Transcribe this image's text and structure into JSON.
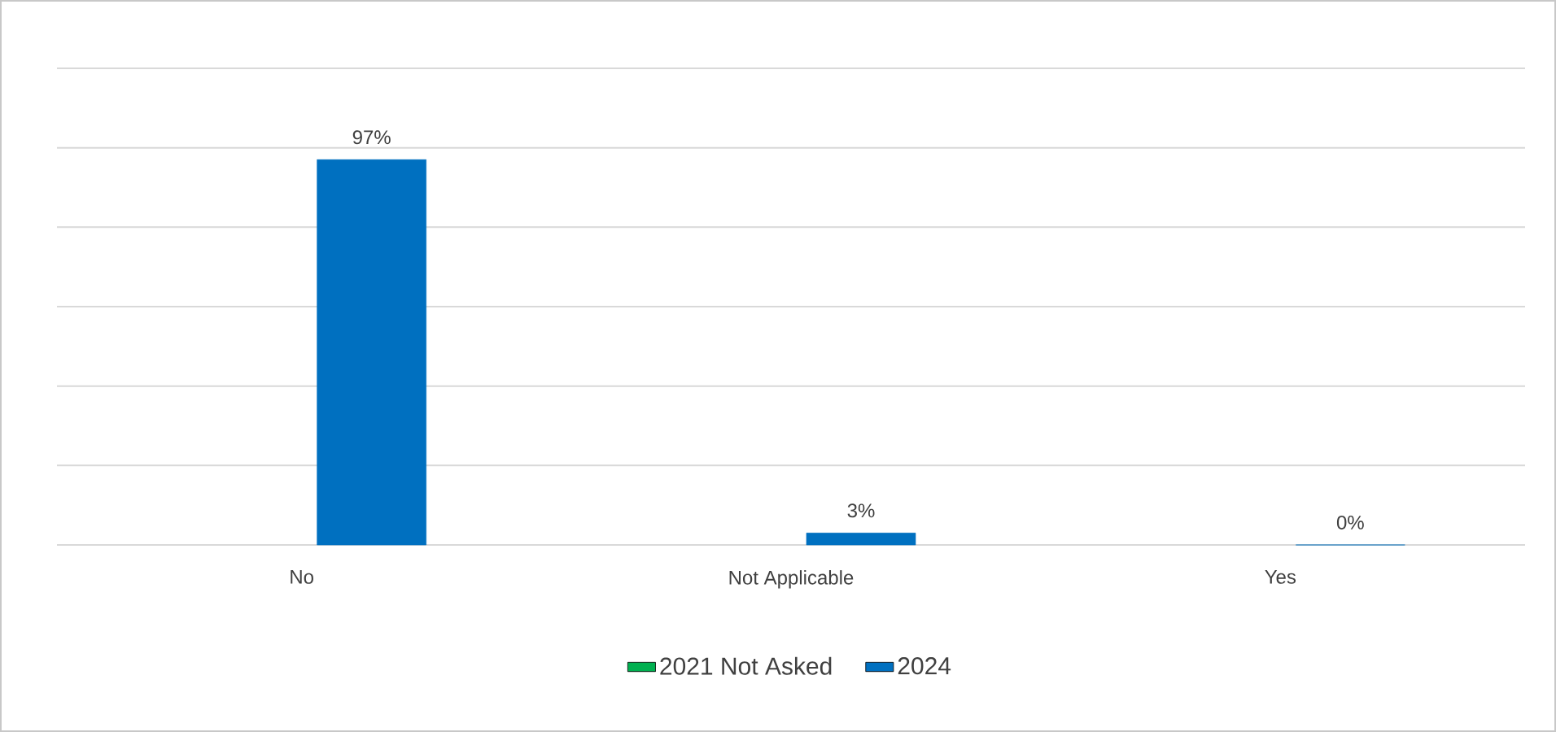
{
  "chart_data": {
    "type": "bar",
    "categories": [
      "No",
      "Not Applicable",
      "Yes"
    ],
    "series": [
      {
        "name": "2021 Not Asked",
        "color": "#00b050",
        "values": [
          null,
          null,
          null
        ]
      },
      {
        "name": "2024",
        "color": "#0070c0",
        "values": [
          97,
          3,
          0
        ],
        "value_labels": [
          "97%",
          "3%",
          "0%"
        ]
      }
    ],
    "ylim": [
      0,
      120
    ],
    "yticks": [
      {
        "value": 0,
        "label": null
      },
      {
        "value": 20,
        "label": null
      },
      {
        "value": 40,
        "label": null
      },
      {
        "value": 60,
        "label": null
      },
      {
        "value": 80,
        "label": null
      },
      {
        "value": 100,
        "label": null
      },
      {
        "value": 120,
        "label": null
      }
    ],
    "tick_labels": "x",
    "grid": "y",
    "legend": "bottom"
  }
}
